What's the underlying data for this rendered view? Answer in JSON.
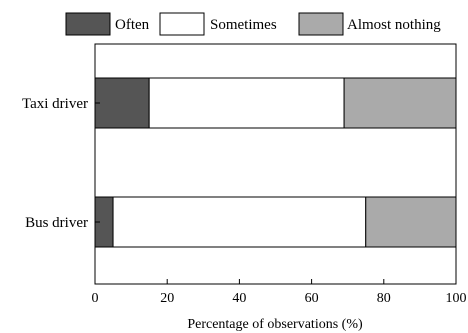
{
  "chart_data": {
    "type": "bar",
    "orientation": "horizontal",
    "stacked": true,
    "categories": [
      "Taxi driver",
      "Bus driver"
    ],
    "series": [
      {
        "name": "Often",
        "values": [
          15,
          5
        ],
        "color": "#555555"
      },
      {
        "name": "Sometimes",
        "values": [
          54,
          70
        ],
        "color": "#ffffff"
      },
      {
        "name": "Almost nothing",
        "values": [
          31,
          25
        ],
        "color": "#aaaaaa"
      }
    ],
    "xlabel": "Percentage of observations (%)",
    "ylabel": "",
    "xlim": [
      0,
      100
    ],
    "xticks": [
      0,
      20,
      40,
      60,
      80,
      100
    ],
    "grid": false,
    "legend": "top"
  }
}
